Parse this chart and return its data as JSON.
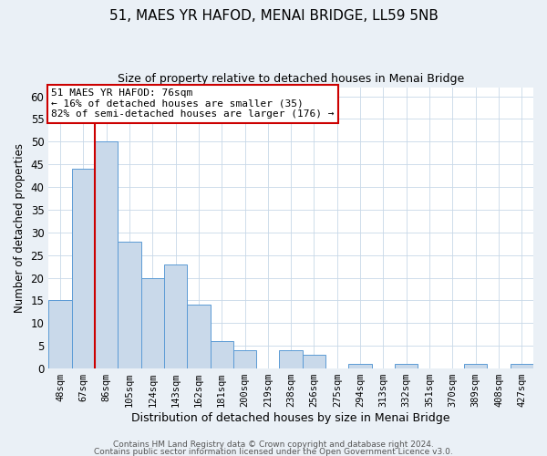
{
  "title": "51, MAES YR HAFOD, MENAI BRIDGE, LL59 5NB",
  "subtitle": "Size of property relative to detached houses in Menai Bridge",
  "xlabel": "Distribution of detached houses by size in Menai Bridge",
  "ylabel": "Number of detached properties",
  "bin_labels": [
    "48sqm",
    "67sqm",
    "86sqm",
    "105sqm",
    "124sqm",
    "143sqm",
    "162sqm",
    "181sqm",
    "200sqm",
    "219sqm",
    "238sqm",
    "256sqm",
    "275sqm",
    "294sqm",
    "313sqm",
    "332sqm",
    "351sqm",
    "370sqm",
    "389sqm",
    "408sqm",
    "427sqm"
  ],
  "bar_values": [
    15,
    44,
    50,
    28,
    20,
    23,
    14,
    6,
    4,
    0,
    4,
    3,
    0,
    1,
    0,
    1,
    0,
    0,
    1,
    0,
    1
  ],
  "bar_color": "#c9d9ea",
  "bar_edge_color": "#5b9bd5",
  "vline_x": 1.5,
  "vline_color": "#cc0000",
  "ylim": [
    0,
    62
  ],
  "yticks": [
    0,
    5,
    10,
    15,
    20,
    25,
    30,
    35,
    40,
    45,
    50,
    55,
    60
  ],
  "annotation_text": "51 MAES YR HAFOD: 76sqm\n← 16% of detached houses are smaller (35)\n82% of semi-detached houses are larger (176) →",
  "annotation_box_color": "#cc0000",
  "footer1": "Contains HM Land Registry data © Crown copyright and database right 2024.",
  "footer2": "Contains public sector information licensed under the Open Government Licence v3.0.",
  "background_color": "#eaf0f6",
  "plot_bg_color": "#ffffff",
  "grid_color": "#c8d8e8"
}
